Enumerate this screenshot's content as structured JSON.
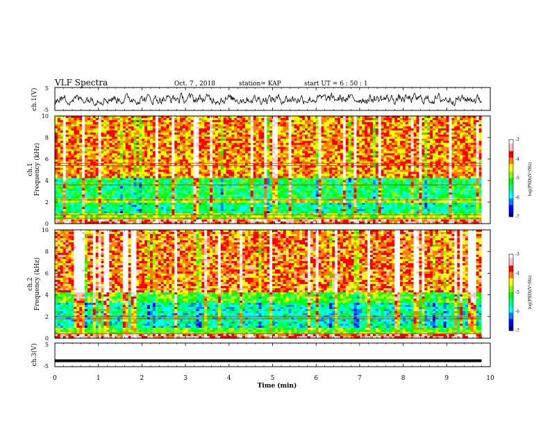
{
  "header": {
    "title": "VLF Spectra",
    "date": "Oct. 7 , 2018",
    "station": "station= KAP",
    "start": "start  UT  =   6  : 50 : 1"
  },
  "colors": {
    "colormap": [
      "#000080",
      "#0000ff",
      "#0080ff",
      "#00ffff",
      "#00ff80",
      "#00ff00",
      "#80ff00",
      "#ffff00",
      "#ff8000",
      "#ff0000",
      "#ffc0c0",
      "#ffffff"
    ],
    "trace": "#000000"
  },
  "chart_data": [
    {
      "type": "line",
      "id": "ch1-waveform",
      "ylabel": "ch.1(V)",
      "ylim": [
        -5,
        5
      ],
      "yticks": [
        "5",
        "-5"
      ],
      "xlim": [
        0,
        10
      ],
      "note": "noisy waveform centered near 0 V, amplitude ~2 V, visible from 0 to ~9.8 min"
    },
    {
      "type": "heatmap",
      "id": "ch1-spectrogram",
      "ylabel": "ch.1",
      "ylabel2": "Frequency (kHz)",
      "ylim": [
        0,
        10
      ],
      "yticks": [
        "0",
        "2",
        "4",
        "6",
        "8",
        "10"
      ],
      "xlim": [
        0,
        10
      ],
      "data_xmax": 9.8,
      "colorbar": {
        "label": "log(PSD)(V²/Hz)",
        "range": [
          -7,
          -3
        ],
        "ticks": [
          "-3",
          "-4",
          "-5",
          "-6",
          "-7"
        ]
      },
      "bands_khz": [
        {
          "range": [
            0,
            0.3
          ],
          "level": 0.85
        },
        {
          "range": [
            0.3,
            1.0
          ],
          "level": 0.55
        },
        {
          "range": [
            1.0,
            1.9
          ],
          "level": 0.35
        },
        {
          "range": [
            1.9,
            2.4
          ],
          "level": 0.6
        },
        {
          "range": [
            2.4,
            4.2
          ],
          "level": 0.4
        },
        {
          "range": [
            4.2,
            10
          ],
          "level": 0.72
        }
      ],
      "lines_khz": [
        0.5,
        0.8,
        2.2,
        3.6,
        5.4,
        5.6
      ]
    },
    {
      "type": "heatmap",
      "id": "ch2-spectrogram",
      "ylabel": "ch.2",
      "ylabel2": "Frequency (kHz)",
      "ylim": [
        0,
        10
      ],
      "yticks": [
        "0",
        "2",
        "4",
        "6",
        "8",
        "10"
      ],
      "xlim": [
        0,
        10
      ],
      "data_xmax": 9.8,
      "colorbar": {
        "label": "log(PSD)(V²/Hz)",
        "range": [
          -7,
          -3
        ],
        "ticks": [
          "-3",
          "-4",
          "-5",
          "-6",
          "-7"
        ]
      },
      "bands_khz": [
        {
          "range": [
            0,
            0.3
          ],
          "level": 0.85
        },
        {
          "range": [
            0.3,
            1.0
          ],
          "level": 0.5
        },
        {
          "range": [
            1.0,
            3.2
          ],
          "level": 0.33
        },
        {
          "range": [
            3.2,
            4.2
          ],
          "level": 0.5
        },
        {
          "range": [
            4.2,
            10
          ],
          "level": 0.75
        }
      ],
      "lines_khz": [
        0.4,
        1.8,
        2.0
      ]
    },
    {
      "type": "line",
      "id": "ch3-waveform",
      "ylabel": "ch.3(V)",
      "ylim": [
        -5,
        5
      ],
      "yticks": [
        "5",
        "-5"
      ],
      "xlim": [
        0,
        10
      ],
      "series": [
        {
          "x": [
            0,
            9.8
          ],
          "y": [
            -2.5,
            -2.5
          ]
        }
      ]
    }
  ],
  "xaxis": {
    "label": "Time (min)",
    "ticks": [
      "0",
      "1",
      "2",
      "3",
      "4",
      "5",
      "6",
      "7",
      "8",
      "9",
      "10"
    ]
  }
}
